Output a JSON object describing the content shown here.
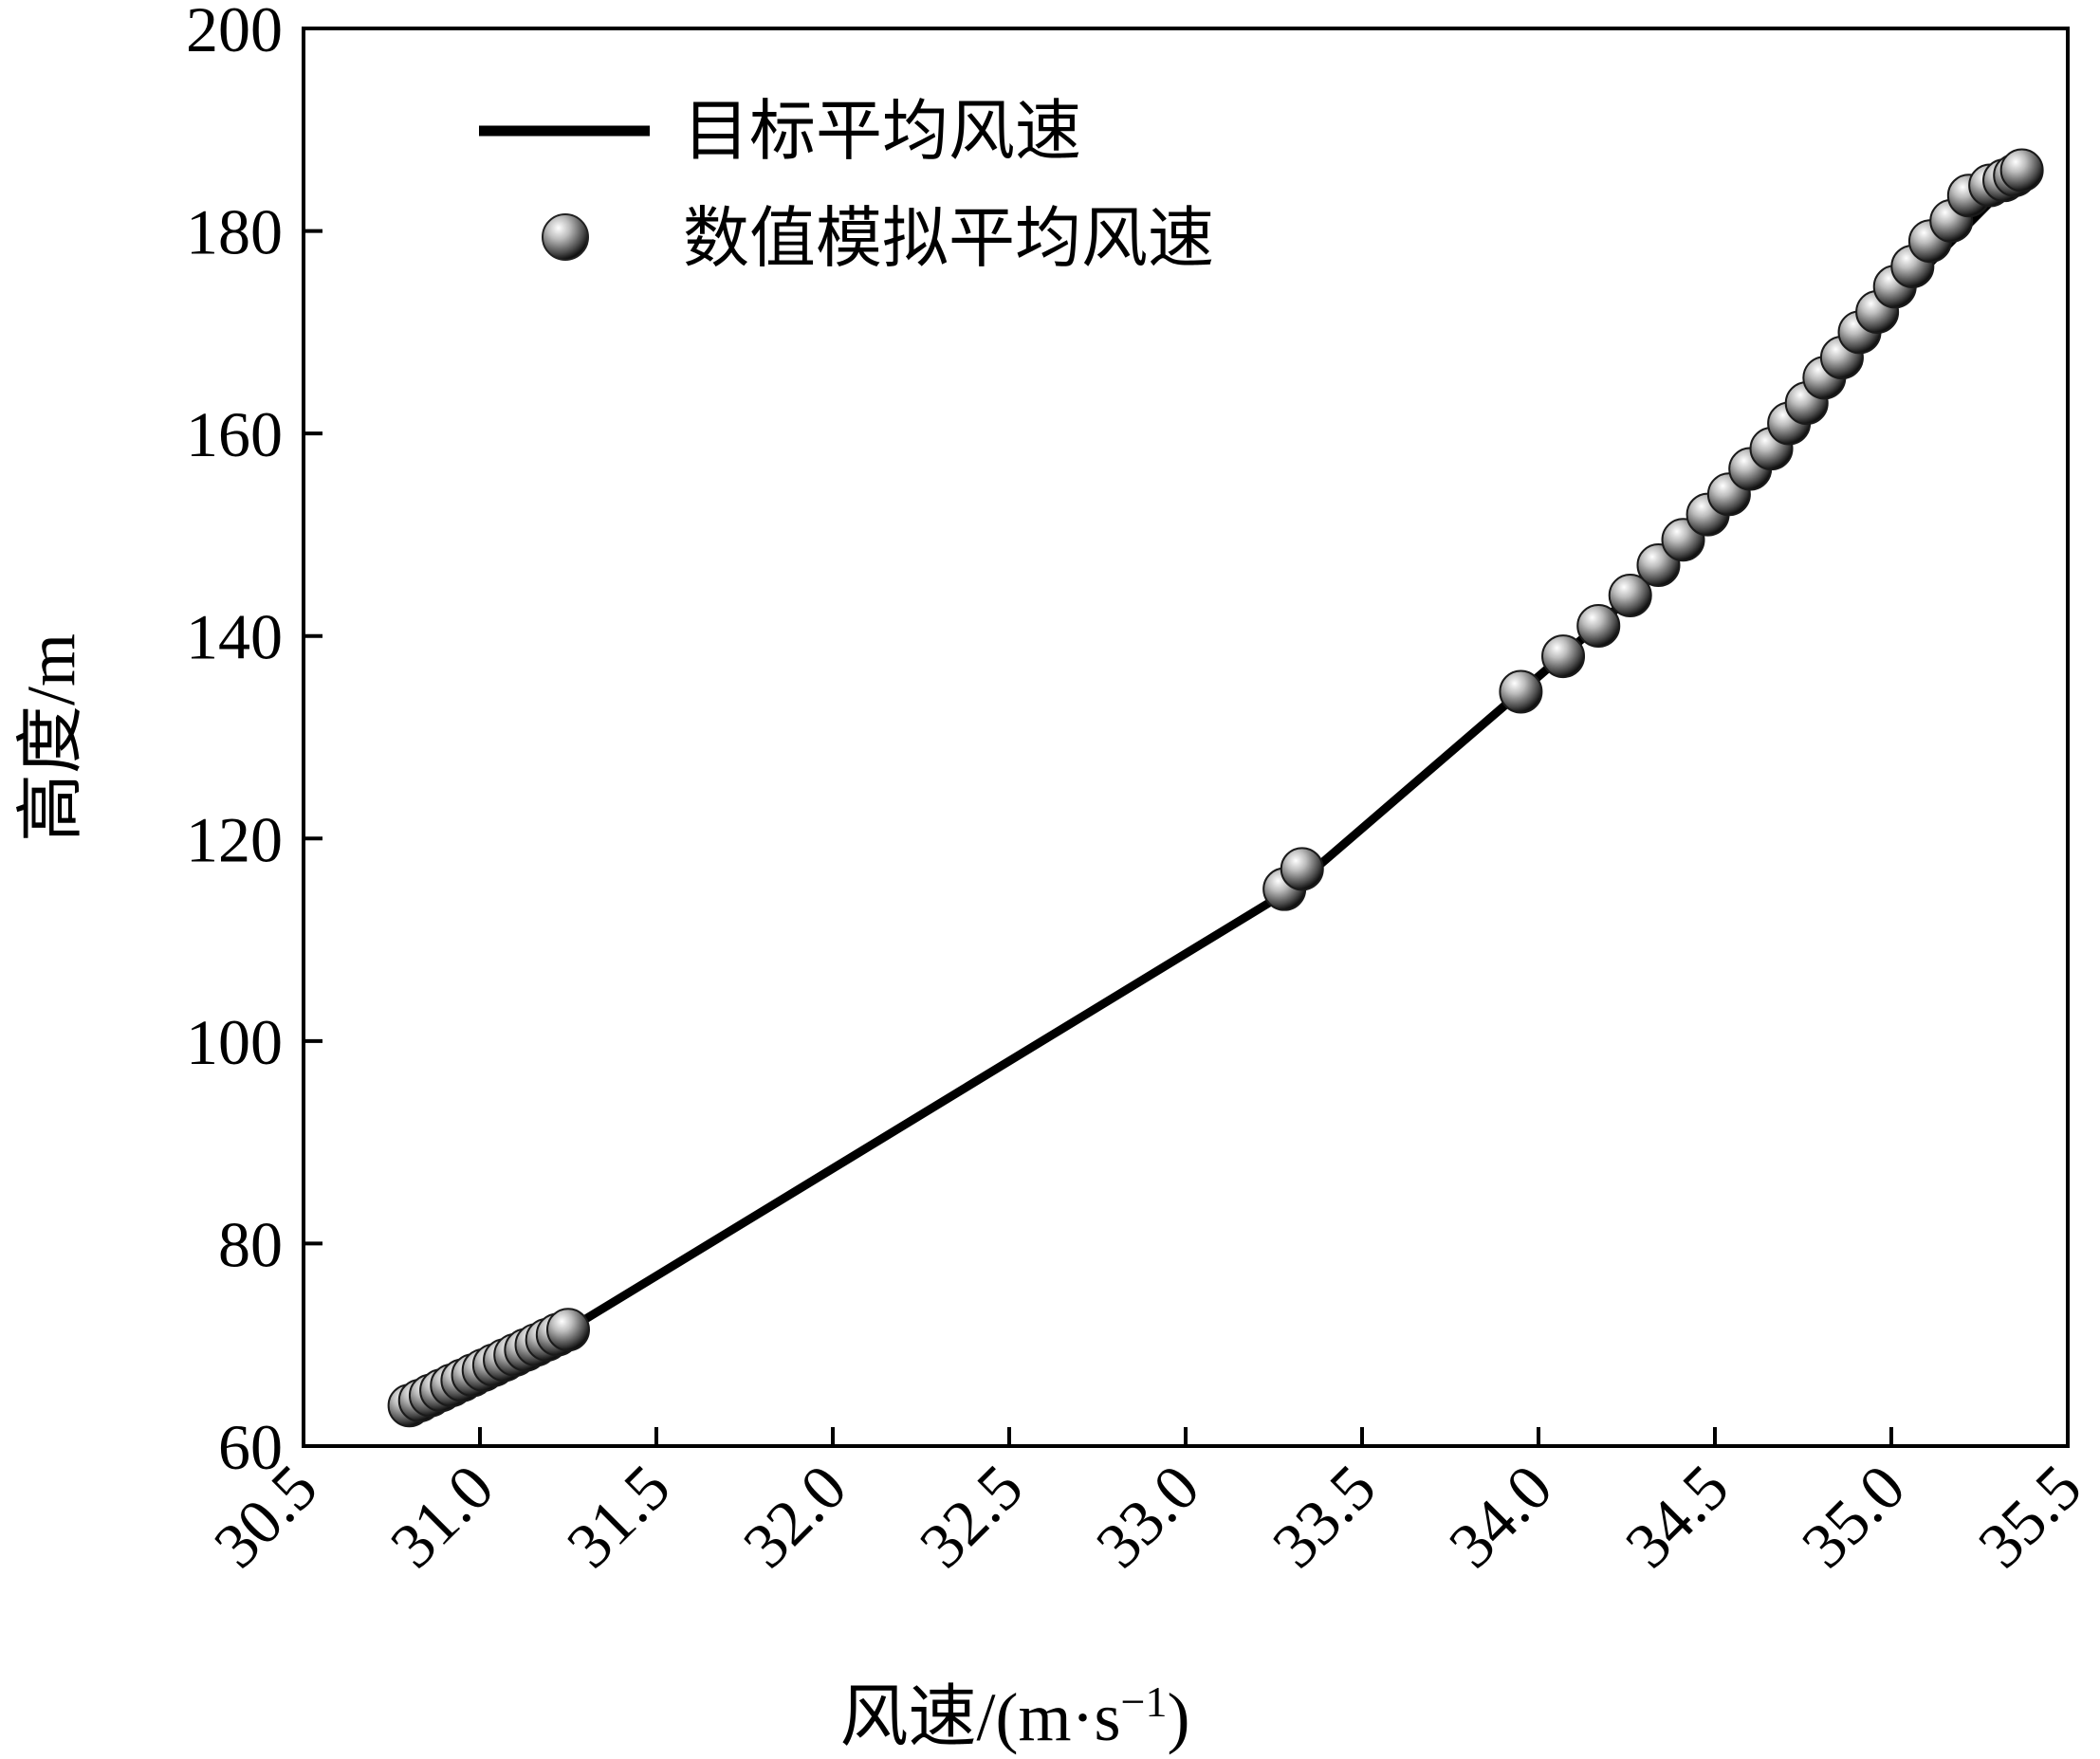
{
  "chart_data": {
    "type": "line",
    "xlabel": "风速/(m·s",
    "xlabel_superscript": "−1",
    "xlabel_close": ")",
    "ylabel": "高度/m",
    "xlim": [
      30.5,
      35.5
    ],
    "ylim": [
      60,
      200
    ],
    "xticks": [
      "30.5",
      "31.0",
      "31.5",
      "32.0",
      "32.5",
      "33.0",
      "33.5",
      "34.0",
      "34.5",
      "35.0",
      "35.5"
    ],
    "yticks": [
      "60",
      "80",
      "100",
      "120",
      "140",
      "160",
      "180",
      "200"
    ],
    "legend_position": "top-left",
    "grid": false,
    "series": [
      {
        "name": "目标平均风速",
        "style": "solid-line",
        "color": "#000000",
        "x": [
          30.8,
          31.25,
          33.3,
          33.95,
          34.2,
          34.5,
          34.8,
          35.1,
          35.37
        ],
        "y": [
          64,
          71.5,
          115,
          134.5,
          142,
          152,
          164,
          176.5,
          186
        ]
      },
      {
        "name": "数值模拟平均风速",
        "style": "sphere-markers",
        "color": "#9a9a9a",
        "x": [
          30.8,
          30.83,
          30.86,
          30.89,
          30.92,
          30.95,
          30.98,
          31.01,
          31.04,
          31.07,
          31.1,
          31.13,
          31.16,
          31.19,
          31.22,
          31.25,
          33.28,
          33.33,
          33.95,
          34.07,
          34.17,
          34.26,
          34.34,
          34.41,
          34.48,
          34.54,
          34.6,
          34.66,
          34.71,
          34.76,
          34.81,
          34.86,
          34.91,
          34.96,
          35.01,
          35.06,
          35.11,
          35.17,
          35.22,
          35.28,
          35.32,
          35.35,
          35.37
        ],
        "y": [
          64,
          64.5,
          65,
          65.5,
          66,
          66.5,
          67,
          67.5,
          68,
          68.5,
          69,
          69.5,
          70,
          70.5,
          71,
          71.5,
          115,
          117,
          134.5,
          138,
          141,
          144,
          147,
          149.5,
          152,
          154,
          156.5,
          158.5,
          161,
          163,
          165.5,
          167.5,
          170,
          172,
          174.5,
          176.5,
          179,
          181,
          183.5,
          184.5,
          185,
          185.5,
          186
        ]
      }
    ]
  }
}
